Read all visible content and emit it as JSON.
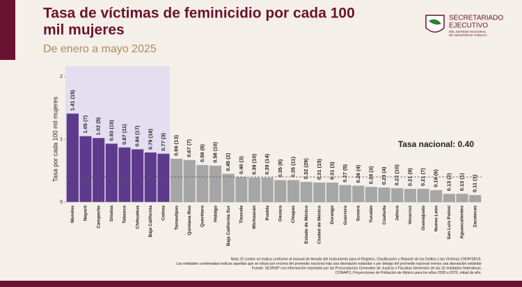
{
  "header": {
    "title_lines": [
      "Tasa de víctimas de feminicidio por cada 100",
      "mil mujeres"
    ],
    "subtitle": "De enero a mayo 2025",
    "logo_lines": [
      "SECRETARIADO",
      "EJECUTIVO",
      "DEL SISTEMA NACIONAL",
      "DE SEGURIDAD PÚBLICA"
    ]
  },
  "chart_data": {
    "type": "bar",
    "ylabel": "Tasa por cada 100 mil mujeres",
    "categories": [
      "Morelos",
      "Nayarit",
      "Campeche",
      "Sinaloa",
      "Tabasco",
      "Chihuahua",
      "Baja California",
      "Colima",
      "Tamaulipas",
      "Quintana Roo",
      "Querétaro",
      "Hidalgo",
      "Baja California Sur",
      "Tlaxcala",
      "Michoacán",
      "Puebla",
      "Oaxaca",
      "Chiapas",
      "Estado de México",
      "Ciudad de México",
      "Durango",
      "Guerrero",
      "Sonora",
      "Yucatán",
      "Coahuila",
      "Jalisco",
      "Veracruz",
      "Guanajuato",
      "Nuevo León",
      "San Luis Potosí",
      "Aguascalientes",
      "Zacatecas"
    ],
    "values": [
      1.41,
      1.05,
      1.02,
      0.93,
      0.87,
      0.84,
      0.79,
      0.77,
      0.69,
      0.67,
      0.59,
      0.58,
      0.45,
      0.4,
      0.39,
      0.39,
      0.35,
      0.35,
      0.32,
      0.31,
      0.31,
      0.27,
      0.26,
      0.24,
      0.23,
      0.22,
      0.21,
      0.21,
      0.19,
      0.13,
      0.13,
      0.11
    ],
    "value_labels": [
      "1.41 (15)",
      "1.05 (7)",
      "1.02 (5)",
      "0.93 (15)",
      "0.87 (11)",
      "0.84 (17)",
      "0.79 (16)",
      "0.77 (3)",
      "0.69 (13)",
      "0.67 (7)",
      "0.59 (8)",
      "0.58 (10)",
      "0.45 (2)",
      "0.40 (3)",
      "0.39 (10)",
      "0.39 (14)",
      "0.35 (8)",
      "0.35 (11)",
      "0.32 (29)",
      "0.31 (15)",
      "0.31 (3)",
      "0.27 (5)",
      "0.26 (4)",
      "0.24 (3)",
      "0.23 (4)",
      "0.22 (10)",
      "0.21 (9)",
      "0.21 (7)",
      "0.19 (6)",
      "0.13 (2)",
      "0.13 (1)",
      "0.11 (1)"
    ],
    "colors": [
      "#5e3a8c",
      "#5e3a8c",
      "#5e3a8c",
      "#5e3a8c",
      "#5e3a8c",
      "#5e3a8c",
      "#5e3a8c",
      "#5e3a8c",
      "#a6a6a6",
      "#a6a6a6",
      "#a6a6a6",
      "#a6a6a6",
      "#a6a6a6",
      "#a6a6a6",
      "#a6a6a6",
      "#a6a6a6",
      "#a6a6a6",
      "#a6a6a6",
      "#a6a6a6",
      "#a6a6a6",
      "#a6a6a6",
      "#a6a6a6",
      "#a6a6a6",
      "#a6a6a6",
      "#a6a6a6",
      "#a6a6a6",
      "#a6a6a6",
      "#a6a6a6",
      "#a6a6a6",
      "#a6a6a6",
      "#a6a6a6",
      "#a6a6a6"
    ],
    "ylim": [
      0,
      2
    ],
    "yticks": [
      0,
      1,
      2
    ],
    "reference_line": {
      "value": 0.4,
      "label": "Tasa nacional: 0.40"
    }
  },
  "notes": [
    "Nota: El conteo se realiza conforme al manual de llenado del Instrumento para el Registro, Clasificación y Reporte de los Delitos y las Víctimas CNSP/38/15.",
    "Las entidades sombreadas indican aquellas que se sitúan por encima del promedio nacional más una desviación estándar o por debajo del promedio nacional menos una desviación estándar",
    "Fuente: SESNSP con información reportada por las Procuradurías Generales de Justicia o Fiscalías Generales de las 32 entidades federativas;",
    "CONAPO, Proyecciones de Población de México para los años 2020 a 2070, mitad de año."
  ]
}
